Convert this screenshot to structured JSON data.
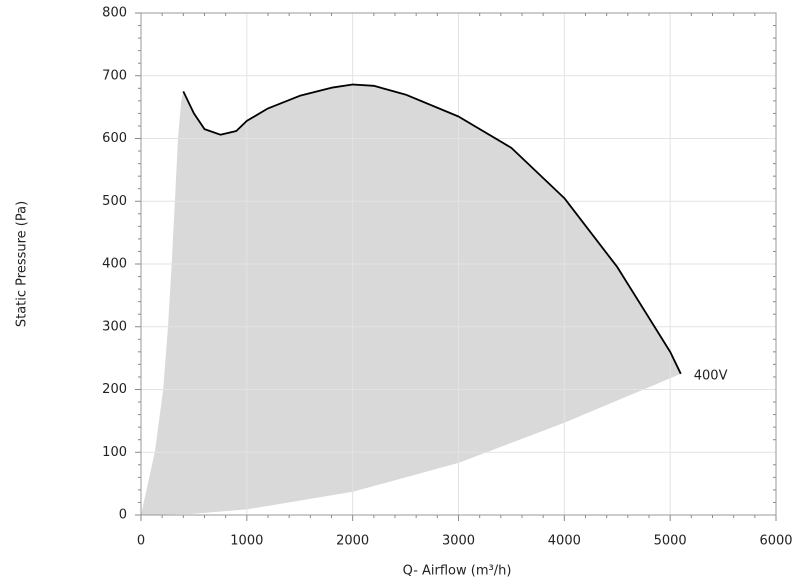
{
  "chart_data": {
    "type": "line",
    "xlabel": "Q- Airflow (m³/h)",
    "ylabel": "Static Pressure (Pa)",
    "xlim": [
      0,
      6000
    ],
    "xticks": [
      0,
      1000,
      2000,
      3000,
      4000,
      5000,
      6000
    ],
    "ylim": [
      0,
      800
    ],
    "yticks": [
      0,
      100,
      200,
      300,
      400,
      500,
      600,
      700,
      800
    ],
    "grid": true,
    "series": [
      {
        "name": "400V",
        "color": "#000000",
        "x": [
          400,
          500,
          600,
          750,
          900,
          1000,
          1200,
          1500,
          1800,
          2000,
          2200,
          2500,
          3000,
          3500,
          4000,
          4500,
          5000,
          5100
        ],
        "values": [
          675,
          640,
          615,
          606,
          612,
          628,
          648,
          668,
          681,
          686,
          684,
          670,
          635,
          585,
          505,
          395,
          260,
          225
        ]
      }
    ],
    "area": {
      "color": "#d9d9d9",
      "x": [
        0,
        130,
        210,
        255,
        290,
        320,
        350,
        380,
        400,
        500,
        600,
        750,
        900,
        1000,
        1200,
        1500,
        1800,
        2000,
        2200,
        2500,
        3000,
        3500,
        4000,
        4500,
        5000,
        5100,
        4000,
        3000,
        2000,
        1000,
        500,
        0
      ],
      "y": [
        0,
        100,
        200,
        300,
        400,
        500,
        600,
        660,
        675,
        640,
        615,
        606,
        612,
        628,
        648,
        668,
        681,
        686,
        684,
        670,
        635,
        585,
        505,
        395,
        260,
        225,
        147,
        83,
        37,
        9,
        2,
        0
      ]
    }
  }
}
